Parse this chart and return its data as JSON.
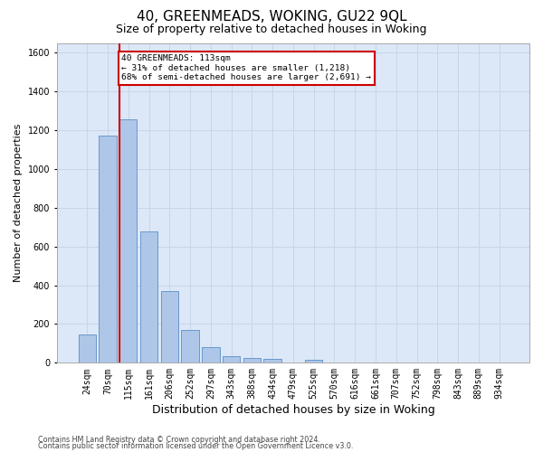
{
  "title": "40, GREENMEADS, WOKING, GU22 9QL",
  "subtitle": "Size of property relative to detached houses in Woking",
  "xlabel": "Distribution of detached houses by size in Woking",
  "ylabel": "Number of detached properties",
  "footer_line1": "Contains HM Land Registry data © Crown copyright and database right 2024.",
  "footer_line2": "Contains public sector information licensed under the Open Government Licence v3.0.",
  "categories": [
    "24sqm",
    "70sqm",
    "115sqm",
    "161sqm",
    "206sqm",
    "252sqm",
    "297sqm",
    "343sqm",
    "388sqm",
    "434sqm",
    "479sqm",
    "525sqm",
    "570sqm",
    "616sqm",
    "661sqm",
    "707sqm",
    "752sqm",
    "798sqm",
    "843sqm",
    "889sqm",
    "934sqm"
  ],
  "values": [
    145,
    1170,
    1255,
    680,
    370,
    170,
    80,
    35,
    25,
    20,
    0,
    15,
    0,
    0,
    0,
    0,
    0,
    0,
    0,
    0,
    0
  ],
  "bar_color": "#aec6e8",
  "bar_edge_color": "#5a8fc4",
  "vline_color": "#cc0000",
  "vline_index": 2,
  "annotation_line1": "40 GREENMEADS: 113sqm",
  "annotation_line2": "← 31% of detached houses are smaller (1,218)",
  "annotation_line3": "68% of semi-detached houses are larger (2,691) →",
  "annotation_box_edgecolor": "#cc0000",
  "ylim": [
    0,
    1650
  ],
  "yticks": [
    0,
    200,
    400,
    600,
    800,
    1000,
    1200,
    1400,
    1600
  ],
  "grid_color": "#c8d4e8",
  "background_color": "#dce8f8",
  "title_fontsize": 11,
  "subtitle_fontsize": 9,
  "xlabel_fontsize": 9,
  "ylabel_fontsize": 8,
  "tick_fontsize": 7
}
